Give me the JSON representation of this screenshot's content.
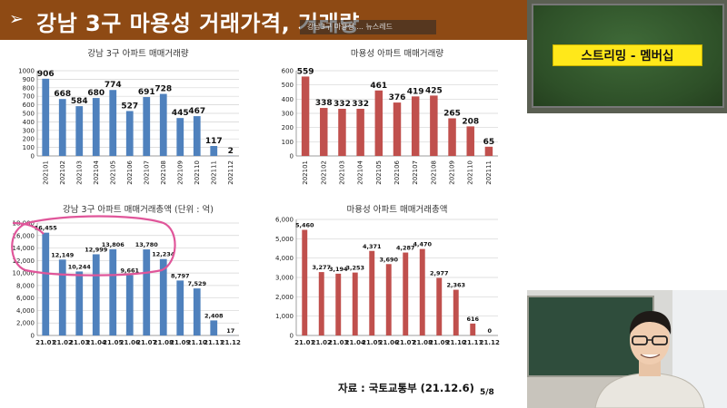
{
  "header": {
    "arrow": "➢",
    "title": "강남 3구 마용성 거래가격, 거래량"
  },
  "ghost_caption": "강남3구 마용성 ... 뉴스레드",
  "colors": {
    "blue": "#4f81bd",
    "red": "#c0504d",
    "header": "#8e4a14",
    "annotation": "#e0569a",
    "sign": "#ffe81a"
  },
  "chart_data": [
    {
      "type": "bar",
      "title": "강남 3구 아파트 매매거래량",
      "categories": [
        "202101",
        "202102",
        "202103",
        "202104",
        "202105",
        "202106",
        "202107",
        "202108",
        "202109",
        "202110",
        "202111",
        "202112"
      ],
      "values": [
        906,
        668,
        584,
        680,
        774,
        527,
        691,
        728,
        445,
        467,
        117,
        2
      ],
      "ylim": [
        0,
        1000
      ],
      "yticks": [
        "0",
        "100",
        "200",
        "300",
        "400",
        "500",
        "600",
        "700",
        "800",
        "900",
        "1000"
      ],
      "color": "#4f81bd",
      "grid": true
    },
    {
      "type": "bar",
      "title": "마용성 아파트 매매거래량",
      "categories": [
        "202101",
        "202102",
        "202103",
        "202104",
        "202105",
        "202106",
        "202107",
        "202108",
        "202109",
        "202110",
        "202111"
      ],
      "values": [
        559,
        338,
        332,
        332,
        461,
        376,
        419,
        425,
        265,
        208,
        65
      ],
      "ylim": [
        0,
        600
      ],
      "yticks": [
        "0",
        "100",
        "200",
        "300",
        "400",
        "500",
        "600"
      ],
      "color": "#c0504d",
      "grid": true
    },
    {
      "type": "bar",
      "title": "강남 3구 아파트 매매거래총액 (단위 : 억)",
      "categories": [
        "21.01",
        "21.02",
        "21.03",
        "21.04",
        "21.05",
        "21.06",
        "21.07",
        "21.08",
        "21.09",
        "21.10",
        "21.11",
        "21.12"
      ],
      "values": [
        16455,
        12149,
        10244,
        12999,
        13806,
        9661,
        13780,
        12234,
        8797,
        7529,
        2408,
        17
      ],
      "labels": [
        "16,455",
        "12,149",
        "10,244",
        "12,999",
        "13,806",
        "9,661",
        "13,780",
        "12,234",
        "8,797",
        "7,529",
        "2,408",
        "17"
      ],
      "ylim": [
        0,
        18000
      ],
      "yticks": [
        "0",
        "2,000",
        "4,000",
        "6,000",
        "8,000",
        "10,000",
        "12,000",
        "14,000",
        "16,000",
        "18,000"
      ],
      "color": "#4f81bd",
      "grid": true
    },
    {
      "type": "bar",
      "title": "마용성 아파트 매매거래총액",
      "categories": [
        "21.01",
        "21.02",
        "21.03",
        "21.04",
        "21.05",
        "21.06",
        "21.07",
        "21.08",
        "21.09",
        "21.10",
        "21.11",
        "21.12"
      ],
      "values": [
        5460,
        3277,
        3194,
        3253,
        4371,
        3690,
        4287,
        4470,
        2977,
        2363,
        616,
        0
      ],
      "labels": [
        "5,460",
        "3,277",
        "3,194",
        "3,253",
        "4,371",
        "3,690",
        "4,287",
        "4,470",
        "2,977",
        "2,363",
        "616",
        "0"
      ],
      "ylim": [
        0,
        6000
      ],
      "yticks": [
        "0",
        "1,000",
        "2,000",
        "3,000",
        "4,000",
        "5,000",
        "6,000"
      ],
      "color": "#c0504d",
      "grid": true
    }
  ],
  "source": "자료 : 국토교통부  (21.12.6)",
  "page_number": "5/8",
  "webcam": {
    "sign_text": "스트리밍 - 멤버십"
  }
}
